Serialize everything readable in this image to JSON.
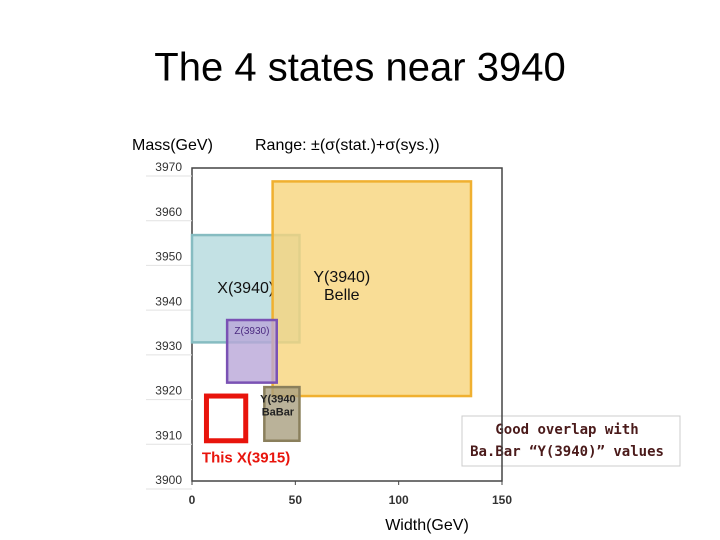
{
  "chart_data": {
    "type": "region",
    "title": "The 4 states near 3940",
    "y_label": "Mass(GeV)",
    "subtitle": "Range: ±(σ(stat.)+σ(sys.))",
    "x_label": "Width(GeV)",
    "annotation": [
      "Good overlap with",
      "Ba.Bar “Y(3940)” values"
    ],
    "xlim": [
      0,
      150
    ],
    "xticks": [
      0,
      50,
      100,
      150
    ],
    "ylim": [
      3900,
      3970
    ],
    "yticks": [
      3900,
      3910,
      3920,
      3930,
      3940,
      3950,
      3960,
      3970
    ],
    "regions": [
      {
        "label": [
          "X(3940)"
        ],
        "fill": "#b4dadd",
        "stroke": "#86bcc1",
        "x": [
          0,
          52
        ],
        "y": [
          3931,
          3955
        ]
      },
      {
        "label": [
          "Y(3940)",
          "Belle"
        ],
        "fill": "#f8d47c",
        "stroke": "#f0b030",
        "x": [
          39,
          135
        ],
        "y": [
          3919,
          3967
        ]
      },
      {
        "label": [
          "Z(3930)"
        ],
        "fill": "#b9a6d8",
        "stroke": "#7a52b4",
        "x": [
          17,
          41
        ],
        "y": [
          3922,
          3936
        ]
      },
      {
        "label": [
          "Y(3940",
          "BaBar"
        ],
        "fill": "#a99f80",
        "stroke": "#8a7f5c",
        "x": [
          35,
          52
        ],
        "y": [
          3909,
          3921
        ]
      },
      {
        "label": [
          "This  X(3915)"
        ],
        "fill": "none",
        "stroke": "#e8140c",
        "x": [
          7,
          26
        ],
        "y": [
          3909,
          3919
        ]
      }
    ]
  }
}
